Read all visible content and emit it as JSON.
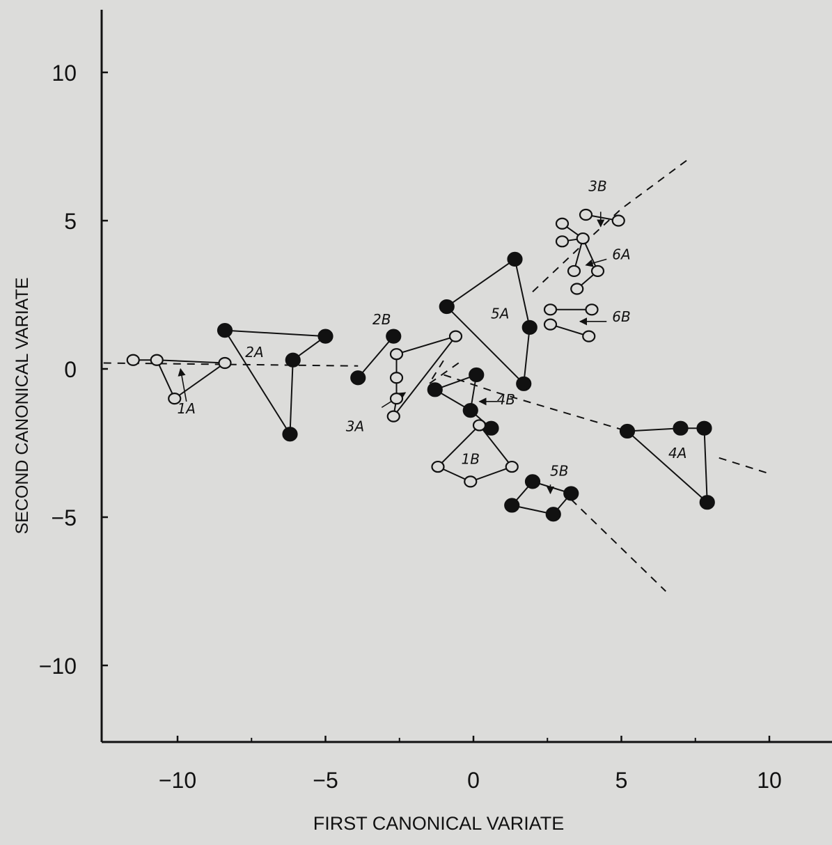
{
  "chart_data": {
    "type": "scatter",
    "title": "",
    "xlabel": "FIRST CANONICAL VARIATE",
    "ylabel": "SECOND CANONICAL VARIATE",
    "xlim": [
      -12.5,
      12.5
    ],
    "ylim": [
      -12.5,
      12.5
    ],
    "xticks": [
      -10,
      -5,
      0,
      5,
      10
    ],
    "yticks": [
      -10,
      -5,
      0,
      5,
      10
    ],
    "xtick_labels": [
      "−10",
      "−5",
      "0",
      "5",
      "10"
    ],
    "ytick_labels": [
      "−10",
      "−5",
      "0",
      "5",
      "10"
    ],
    "grid": false,
    "legend": "none",
    "colors": {
      "ink": "#111111",
      "background": "#dcdcda"
    },
    "groups": [
      {
        "label": "1A",
        "filled": false,
        "closed": false,
        "points": [
          [
            -11.5,
            0.3
          ],
          [
            -10.7,
            0.3
          ],
          [
            -8.4,
            0.2
          ],
          [
            -10.1,
            -1.0
          ]
        ],
        "edges": [
          [
            0,
            1
          ],
          [
            1,
            2
          ],
          [
            2,
            3
          ],
          [
            3,
            1
          ]
        ],
        "label_pos": [
          -9.7,
          -1.5
        ],
        "arrow": [
          [
            -9.7,
            -1.1
          ],
          [
            -9.9,
            0.0
          ]
        ]
      },
      {
        "label": "2A",
        "filled": true,
        "closed": false,
        "points": [
          [
            -8.4,
            1.3
          ],
          [
            -5.0,
            1.1
          ],
          [
            -6.1,
            0.3
          ],
          [
            -6.2,
            -2.2
          ]
        ],
        "edges": [
          [
            0,
            1
          ],
          [
            1,
            2
          ],
          [
            2,
            3
          ],
          [
            3,
            0
          ]
        ],
        "label_pos": [
          -7.4,
          0.4
        ]
      },
      {
        "label": "2B",
        "filled": true,
        "closed": false,
        "points": [
          [
            -3.9,
            -0.3
          ],
          [
            -2.7,
            1.1
          ]
        ],
        "edges": [
          [
            0,
            1
          ]
        ],
        "label_pos": [
          -3.1,
          1.5
        ]
      },
      {
        "label": "3A",
        "filled": false,
        "closed": false,
        "points": [
          [
            -2.6,
            0.5
          ],
          [
            -2.6,
            -0.3
          ],
          [
            -2.6,
            -1.0
          ],
          [
            -2.7,
            -1.6
          ],
          [
            -0.6,
            1.1
          ]
        ],
        "edges": [
          [
            0,
            1
          ],
          [
            1,
            2
          ],
          [
            2,
            3
          ],
          [
            3,
            4
          ],
          [
            4,
            0
          ]
        ],
        "label_pos": [
          -4.0,
          -2.1
        ],
        "arrow": [
          [
            -3.1,
            -1.3
          ],
          [
            -2.3,
            -0.8
          ]
        ]
      },
      {
        "label": "5A",
        "filled": true,
        "closed": true,
        "points": [
          [
            -0.9,
            2.1
          ],
          [
            1.4,
            3.7
          ],
          [
            1.9,
            1.4
          ],
          [
            1.7,
            -0.5
          ]
        ],
        "label_pos": [
          0.9,
          1.7
        ]
      },
      {
        "label": "4B",
        "filled": true,
        "closed": false,
        "points": [
          [
            -1.3,
            -0.7
          ],
          [
            0.1,
            -0.2
          ],
          [
            -0.1,
            -1.4
          ],
          [
            0.6,
            -2.0
          ]
        ],
        "edges": [
          [
            0,
            1
          ],
          [
            1,
            2
          ],
          [
            2,
            0
          ],
          [
            2,
            3
          ]
        ],
        "label_pos": [
          1.1,
          -1.2
        ],
        "arrow": [
          [
            0.8,
            -1.1
          ],
          [
            0.2,
            -1.1
          ]
        ]
      },
      {
        "label": "1B",
        "filled": false,
        "closed": true,
        "points": [
          [
            0.2,
            -1.9
          ],
          [
            1.3,
            -3.3
          ],
          [
            -0.1,
            -3.8
          ],
          [
            -1.2,
            -3.3
          ]
        ],
        "label_pos": [
          -0.1,
          -3.2
        ]
      },
      {
        "label": "5B",
        "filled": true,
        "closed": true,
        "points": [
          [
            2.0,
            -3.8
          ],
          [
            3.3,
            -4.2
          ],
          [
            2.7,
            -4.9
          ],
          [
            1.3,
            -4.6
          ]
        ],
        "label_pos": [
          2.9,
          -3.6
        ],
        "arrow": [
          [
            2.6,
            -3.9
          ],
          [
            2.6,
            -4.2
          ]
        ]
      },
      {
        "label": "4A",
        "filled": true,
        "closed": false,
        "points": [
          [
            5.2,
            -2.1
          ],
          [
            7.0,
            -2.0
          ],
          [
            7.8,
            -2.0
          ],
          [
            7.9,
            -4.5
          ]
        ],
        "edges": [
          [
            0,
            1
          ],
          [
            1,
            2
          ],
          [
            2,
            3
          ],
          [
            3,
            0
          ]
        ],
        "label_pos": [
          6.9,
          -3.0
        ]
      },
      {
        "label": "3B",
        "filled": false,
        "closed": false,
        "points": [
          [
            3.8,
            5.2
          ],
          [
            4.9,
            5.0
          ]
        ],
        "edges": [
          [
            0,
            1
          ]
        ],
        "label_pos": [
          4.2,
          6.0
        ],
        "arrow": [
          [
            4.3,
            5.3
          ],
          [
            4.3,
            4.8
          ]
        ]
      },
      {
        "label": "6A",
        "filled": false,
        "closed": false,
        "points": [
          [
            3.0,
            4.9
          ],
          [
            3.0,
            4.3
          ],
          [
            3.7,
            4.4
          ],
          [
            3.4,
            3.3
          ],
          [
            4.2,
            3.3
          ],
          [
            3.5,
            2.7
          ]
        ],
        "edges": [
          [
            0,
            2
          ],
          [
            1,
            2
          ],
          [
            2,
            3
          ],
          [
            2,
            4
          ],
          [
            4,
            5
          ]
        ],
        "label_pos": [
          5.0,
          3.7
        ],
        "arrow": [
          [
            4.5,
            3.7
          ],
          [
            3.8,
            3.5
          ]
        ]
      },
      {
        "label": "6B",
        "filled": false,
        "closed": false,
        "points": [
          [
            2.6,
            2.0
          ],
          [
            4.0,
            2.0
          ],
          [
            2.6,
            1.5
          ],
          [
            3.9,
            1.1
          ]
        ],
        "edges": [
          [
            0,
            1
          ],
          [
            2,
            3
          ]
        ],
        "label_pos": [
          5.0,
          1.6
        ],
        "arrow": [
          [
            4.5,
            1.6
          ],
          [
            3.6,
            1.6
          ]
        ]
      }
    ],
    "dashed_lines": [
      [
        [
          -12.5,
          0.2
        ],
        [
          -3.9,
          0.1
        ]
      ],
      [
        [
          -1.0,
          -0.2
        ],
        [
          0.8,
          -0.8
        ],
        [
          5.2,
          -2.1
        ]
      ],
      [
        [
          8.3,
          -3.0
        ],
        [
          9.9,
          -3.5
        ]
      ],
      [
        [
          3.3,
          -4.4
        ],
        [
          6.5,
          -7.5
        ]
      ],
      [
        [
          -0.5,
          0.2
        ],
        [
          -1.5,
          -0.5
        ],
        [
          -1.0,
          0.3
        ]
      ],
      [
        [
          2.0,
          2.6
        ],
        [
          3.7,
          4.2
        ],
        [
          5.0,
          5.4
        ],
        [
          7.3,
          7.1
        ]
      ]
    ]
  }
}
